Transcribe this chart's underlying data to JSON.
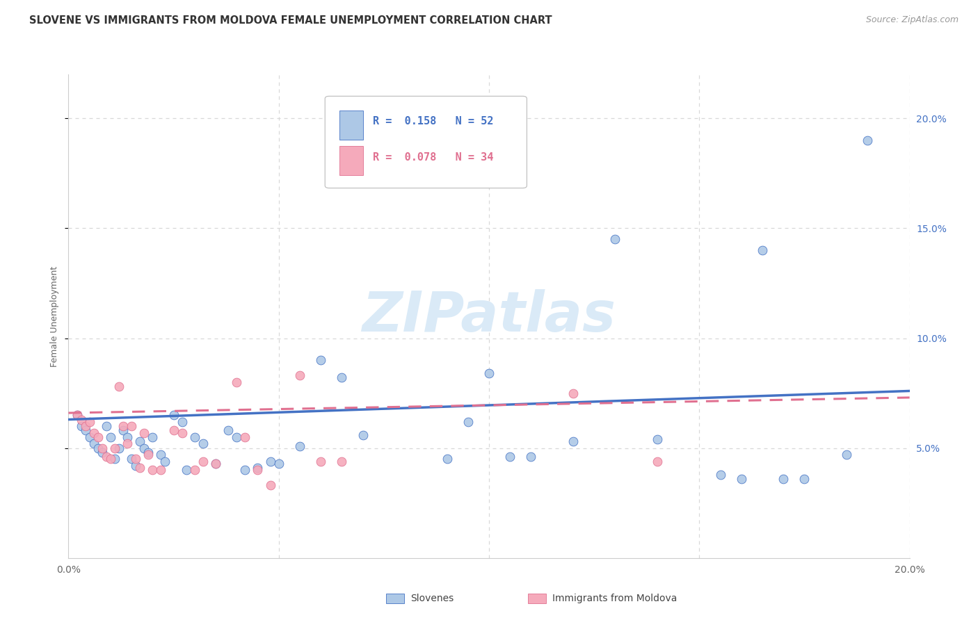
{
  "title": "SLOVENE VS IMMIGRANTS FROM MOLDOVA FEMALE UNEMPLOYMENT CORRELATION CHART",
  "source": "Source: ZipAtlas.com",
  "ylabel": "Female Unemployment",
  "legend_blue_r": "R =  0.158",
  "legend_blue_n": "N = 52",
  "legend_pink_r": "R =  0.078",
  "legend_pink_n": "N = 34",
  "legend_blue_label": "Slovenes",
  "legend_pink_label": "Immigrants from Moldova",
  "watermark": "ZIPatlas",
  "xlim": [
    0.0,
    0.2
  ],
  "ylim": [
    0.0,
    0.22
  ],
  "yticks": [
    0.05,
    0.1,
    0.15,
    0.2
  ],
  "ytick_labels": [
    "5.0%",
    "10.0%",
    "15.0%",
    "20.0%"
  ],
  "xticks": [
    0.0,
    0.05,
    0.1,
    0.15,
    0.2
  ],
  "xtick_labels": [
    "0.0%",
    "",
    "",
    "",
    "20.0%"
  ],
  "blue_scatter_x": [
    0.002,
    0.003,
    0.004,
    0.005,
    0.006,
    0.007,
    0.008,
    0.009,
    0.01,
    0.011,
    0.012,
    0.013,
    0.014,
    0.015,
    0.016,
    0.017,
    0.018,
    0.019,
    0.02,
    0.022,
    0.023,
    0.025,
    0.027,
    0.028,
    0.03,
    0.032,
    0.035,
    0.038,
    0.04,
    0.042,
    0.045,
    0.048,
    0.05,
    0.055,
    0.06,
    0.065,
    0.07,
    0.09,
    0.095,
    0.1,
    0.105,
    0.11,
    0.12,
    0.13,
    0.14,
    0.155,
    0.16,
    0.165,
    0.17,
    0.175,
    0.185,
    0.19
  ],
  "blue_scatter_y": [
    0.065,
    0.06,
    0.058,
    0.055,
    0.052,
    0.05,
    0.048,
    0.06,
    0.055,
    0.045,
    0.05,
    0.058,
    0.055,
    0.045,
    0.042,
    0.053,
    0.05,
    0.048,
    0.055,
    0.047,
    0.044,
    0.065,
    0.062,
    0.04,
    0.055,
    0.052,
    0.043,
    0.058,
    0.055,
    0.04,
    0.041,
    0.044,
    0.043,
    0.051,
    0.09,
    0.082,
    0.056,
    0.045,
    0.062,
    0.084,
    0.046,
    0.046,
    0.053,
    0.145,
    0.054,
    0.038,
    0.036,
    0.14,
    0.036,
    0.036,
    0.047,
    0.19
  ],
  "pink_scatter_x": [
    0.002,
    0.003,
    0.004,
    0.005,
    0.006,
    0.007,
    0.008,
    0.009,
    0.01,
    0.011,
    0.012,
    0.013,
    0.014,
    0.015,
    0.016,
    0.017,
    0.018,
    0.019,
    0.02,
    0.022,
    0.025,
    0.027,
    0.03,
    0.032,
    0.035,
    0.04,
    0.042,
    0.045,
    0.048,
    0.055,
    0.06,
    0.065,
    0.12,
    0.14
  ],
  "pink_scatter_y": [
    0.065,
    0.063,
    0.06,
    0.062,
    0.057,
    0.055,
    0.05,
    0.046,
    0.045,
    0.05,
    0.078,
    0.06,
    0.052,
    0.06,
    0.045,
    0.041,
    0.057,
    0.047,
    0.04,
    0.04,
    0.058,
    0.057,
    0.04,
    0.044,
    0.043,
    0.08,
    0.055,
    0.04,
    0.033,
    0.083,
    0.044,
    0.044,
    0.075,
    0.044
  ],
  "blue_line_x": [
    0.0,
    0.2
  ],
  "blue_line_y_start": 0.063,
  "blue_line_y_end": 0.076,
  "pink_line_x": [
    0.0,
    0.2
  ],
  "pink_line_y_start": 0.066,
  "pink_line_y_end": 0.073,
  "scatter_size": 85,
  "blue_color": "#adc8e6",
  "pink_color": "#f5aabb",
  "blue_line_color": "#4472c4",
  "pink_line_color": "#e07090",
  "title_fontsize": 10.5,
  "source_fontsize": 9,
  "axis_label_fontsize": 9,
  "tick_fontsize": 10,
  "right_tick_color": "#4472c4",
  "watermark_color": "#daeaf7",
  "watermark_fontsize": 58,
  "background_color": "#ffffff",
  "grid_color": "#d8d8d8",
  "grid_style": "--"
}
